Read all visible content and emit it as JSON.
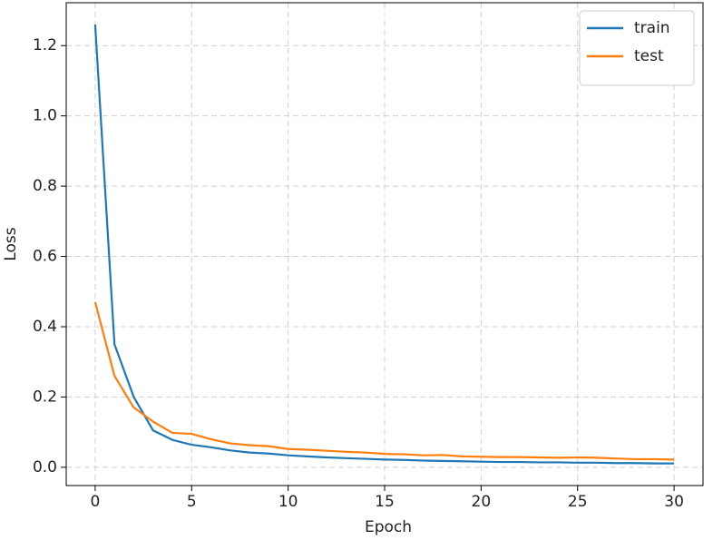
{
  "chart_data": {
    "type": "line",
    "x_label": "Epoch",
    "y_label": "Loss",
    "x": [
      0,
      1,
      2,
      3,
      4,
      5,
      6,
      7,
      8,
      9,
      10,
      11,
      12,
      13,
      14,
      15,
      16,
      17,
      18,
      19,
      20,
      21,
      22,
      23,
      24,
      25,
      26,
      27,
      28,
      29,
      30
    ],
    "series": [
      {
        "name": "train",
        "color": "#1f77b4",
        "values": [
          1.26,
          0.35,
          0.2,
          0.105,
          0.078,
          0.064,
          0.057,
          0.048,
          0.042,
          0.039,
          0.034,
          0.031,
          0.028,
          0.026,
          0.024,
          0.022,
          0.021,
          0.019,
          0.018,
          0.017,
          0.016,
          0.015,
          0.015,
          0.014,
          0.014,
          0.013,
          0.013,
          0.012,
          0.012,
          0.011,
          0.011
        ]
      },
      {
        "name": "test",
        "color": "#ff7f0e",
        "values": [
          0.47,
          0.26,
          0.17,
          0.13,
          0.098,
          0.095,
          0.08,
          0.068,
          0.063,
          0.06,
          0.052,
          0.05,
          0.047,
          0.044,
          0.042,
          0.038,
          0.037,
          0.034,
          0.035,
          0.031,
          0.03,
          0.029,
          0.029,
          0.028,
          0.027,
          0.028,
          0.027,
          0.025,
          0.023,
          0.023,
          0.022
        ]
      }
    ],
    "xlim": [
      -1.5,
      31.5
    ],
    "xticks": [
      0,
      5,
      10,
      15,
      20,
      25,
      30
    ],
    "ylim": [
      -0.052,
      1.322
    ],
    "yticks": [
      {
        "value": 0,
        "label": "0.0"
      },
      {
        "value": 0.2,
        "label": "0.2"
      },
      {
        "value": 0.4,
        "label": "0.4"
      },
      {
        "value": 0.6,
        "label": "0.6"
      },
      {
        "value": 0.8,
        "label": "0.8"
      },
      {
        "value": 1.0,
        "label": "1.0"
      },
      {
        "value": 1.2,
        "label": "1.2"
      }
    ],
    "grid": true,
    "legend": "upper right"
  }
}
